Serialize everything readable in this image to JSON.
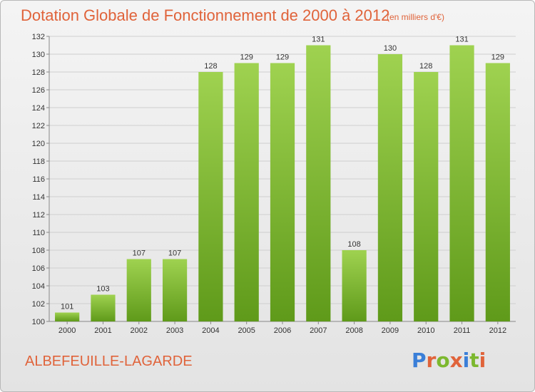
{
  "title": "Dotation Globale de Fonctionnement de 2000 à 2012",
  "unit_note": "(en milliers d'€)",
  "location": "ALBEFEUILLE-LAGARDE",
  "logo": {
    "text": "Proxiti",
    "letter_colors": [
      "#3a7fd8",
      "#e0633a",
      "#7cb82f",
      "#e0633a",
      "#3a7fd8",
      "#7cb82f",
      "#e0633a"
    ]
  },
  "colors": {
    "bar_top": "#9fd250",
    "bar_bottom": "#5f9a1a",
    "title": "#e0633a",
    "grid": "#cfcfcf"
  },
  "chart_data": {
    "type": "bar",
    "categories": [
      "2000",
      "2001",
      "2002",
      "2003",
      "2004",
      "2005",
      "2006",
      "2007",
      "2008",
      "2009",
      "2010",
      "2011",
      "2012"
    ],
    "values": [
      101,
      103,
      107,
      107,
      128,
      129,
      129,
      131,
      108,
      130,
      128,
      131,
      129
    ],
    "ylim": [
      100,
      132
    ],
    "yticks": [
      100,
      102,
      104,
      106,
      108,
      110,
      112,
      114,
      116,
      118,
      120,
      122,
      124,
      126,
      128,
      130,
      132
    ],
    "grid": true,
    "legend": "none"
  }
}
